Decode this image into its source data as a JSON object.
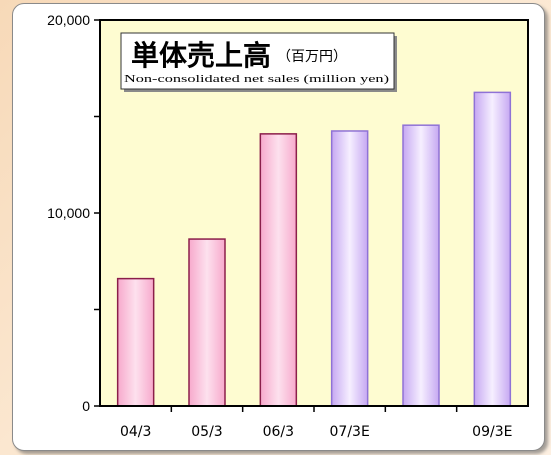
{
  "chart_data": {
    "type": "bar",
    "title": "単体売上高",
    "title_unit": "（百万円）",
    "subtitle": "Non-consolidated net sales (million yen)",
    "categories": [
      "04/3",
      "05/3",
      "06/3",
      "07/3E",
      "",
      "09/3E"
    ],
    "values": [
      6600,
      8650,
      14100,
      14250,
      14550,
      16250
    ],
    "ylim": [
      0,
      20000
    ],
    "y_ticks": [
      0,
      10000,
      20000
    ],
    "y_tick_labels": [
      "0",
      "10,000",
      "20,000"
    ],
    "plot_background": "#fefcd1",
    "bar_styles": [
      "actual",
      "actual",
      "actual",
      "estimate",
      "estimate",
      "estimate"
    ],
    "colors": {
      "actual_fill": "#f7a9cc",
      "actual_highlight": "#fde1ee",
      "actual_outline": "#8b1e4a",
      "estimate_fill": "#c6a8f2",
      "estimate_highlight": "#f6efff",
      "estimate_outline": "#8f72d6"
    }
  }
}
